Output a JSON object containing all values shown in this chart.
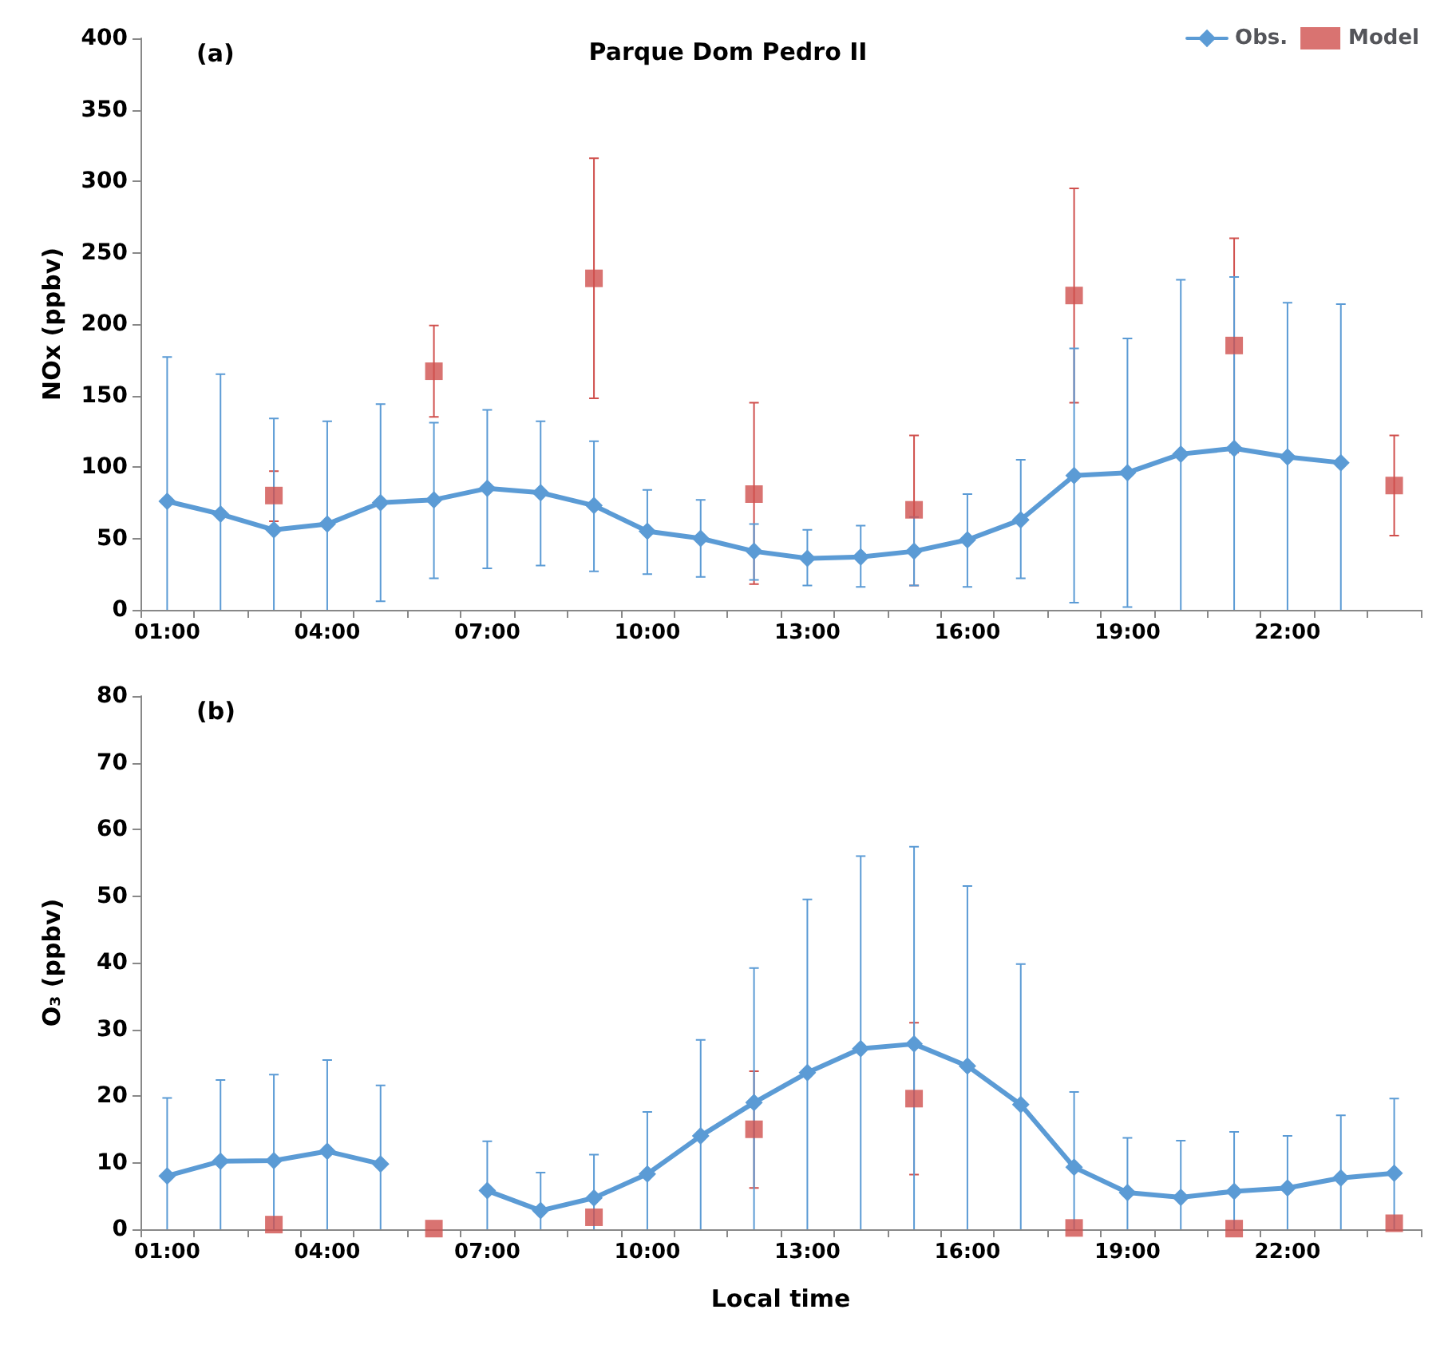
{
  "chart_data": [
    {
      "type": "line",
      "title": "Parque Dom Pedro II",
      "ylabel": "NOx (ppbv)",
      "annotations": [
        "(a)"
      ],
      "categories": [
        "01:00",
        null,
        null,
        "04:00",
        null,
        null,
        "07:00",
        null,
        null,
        "10:00",
        null,
        null,
        "13:00",
        null,
        null,
        "16:00",
        null,
        null,
        "19:00",
        null,
        null,
        "22:00",
        null,
        null
      ],
      "series": [
        {
          "name": "Obs.",
          "type": "line",
          "color": "#5b9bd5",
          "marker": "diamond",
          "line_style": "solid",
          "values": [
            76,
            67,
            56,
            60,
            75,
            77,
            85,
            82,
            73,
            55,
            50,
            41,
            36,
            37,
            41,
            49,
            63,
            94,
            96,
            109,
            113,
            107,
            103,
            null
          ],
          "errors": [
            [
              0,
              177
            ],
            [
              0,
              165
            ],
            [
              0,
              134
            ],
            [
              0,
              132
            ],
            [
              6,
              144
            ],
            [
              22,
              131
            ],
            [
              29,
              140
            ],
            [
              31,
              132
            ],
            [
              27,
              118
            ],
            [
              25,
              84
            ],
            [
              23,
              77
            ],
            [
              21,
              60
            ],
            [
              17,
              56
            ],
            [
              16,
              59
            ],
            [
              17,
              65
            ],
            [
              16,
              81
            ],
            [
              22,
              105
            ],
            [
              5,
              183
            ],
            [
              2,
              190
            ],
            [
              0,
              231
            ],
            [
              0,
              233
            ],
            [
              0,
              215
            ],
            [
              0,
              214
            ],
            null
          ]
        },
        {
          "name": "Model",
          "type": "scatter",
          "color": "#d0504d",
          "marker": "square",
          "values": [
            null,
            null,
            80,
            null,
            null,
            167,
            null,
            null,
            232,
            null,
            null,
            81,
            null,
            null,
            70,
            null,
            null,
            220,
            null,
            null,
            185,
            null,
            null,
            87
          ],
          "errors": [
            null,
            null,
            [
              62,
              97
            ],
            null,
            null,
            [
              135,
              199
            ],
            null,
            null,
            [
              148,
              316
            ],
            null,
            null,
            [
              18,
              145
            ],
            null,
            null,
            [
              17,
              122
            ],
            null,
            null,
            [
              145,
              295
            ],
            null,
            null,
            [
              110,
              260
            ],
            null,
            null,
            [
              52,
              122
            ]
          ]
        }
      ],
      "ylim": [
        0,
        400
      ],
      "yticks": [
        0,
        50,
        100,
        150,
        200,
        250,
        300,
        350,
        400
      ],
      "grid": false,
      "legend": "top right"
    },
    {
      "type": "line",
      "xlabel": "Local time",
      "ylabel": "O₃ (ppbv)",
      "annotations": [
        "(b)"
      ],
      "categories": [
        "01:00",
        null,
        null,
        "04:00",
        null,
        null,
        "07:00",
        null,
        null,
        "10:00",
        null,
        null,
        "13:00",
        null,
        null,
        "16:00",
        null,
        null,
        "19:00",
        null,
        null,
        "22:00",
        null,
        null
      ],
      "series": [
        {
          "type": "line",
          "color": "#5b9bd5",
          "marker": "diamond",
          "line_style": "solid",
          "values": [
            8,
            10.2,
            10.3,
            11.7,
            9.8,
            null,
            5.8,
            2.8,
            4.7,
            8.3,
            14,
            19,
            23.5,
            27.1,
            27.8,
            24.5,
            18.7,
            9.3,
            5.5,
            4.8,
            5.7,
            6.2,
            7.7,
            8.4
          ],
          "errors": [
            [
              0,
              19.7
            ],
            [
              0,
              22.4
            ],
            [
              0,
              23.2
            ],
            [
              0,
              25.4
            ],
            [
              0,
              21.6
            ],
            null,
            [
              0,
              13.2
            ],
            [
              0,
              8.5
            ],
            [
              0,
              11.2
            ],
            [
              0,
              17.6
            ],
            [
              0,
              28.4
            ],
            [
              0,
              39.2
            ],
            [
              0,
              49.5
            ],
            [
              0,
              56
            ],
            [
              0,
              57.4
            ],
            [
              0,
              51.5
            ],
            [
              0,
              39.8
            ],
            [
              0,
              20.6
            ],
            [
              0,
              13.7
            ],
            [
              0,
              13.3
            ],
            [
              0,
              14.6
            ],
            [
              0,
              14
            ],
            [
              0,
              17.1
            ],
            [
              0,
              19.6
            ]
          ]
        },
        {
          "type": "scatter",
          "color": "#d0504d",
          "marker": "square",
          "values": [
            null,
            null,
            0.7,
            null,
            null,
            0.1,
            null,
            null,
            1.8,
            null,
            null,
            15,
            null,
            null,
            19.6,
            null,
            null,
            0.2,
            null,
            null,
            0.1,
            null,
            null,
            0.9
          ],
          "errors": [
            null,
            null,
            null,
            null,
            null,
            null,
            null,
            null,
            null,
            null,
            null,
            [
              6.2,
              23.7
            ],
            null,
            null,
            [
              8.2,
              31
            ],
            null,
            null,
            null,
            null,
            null,
            null,
            null,
            null,
            null
          ]
        }
      ],
      "ylim": [
        0,
        80
      ],
      "yticks": [
        0,
        10,
        20,
        30,
        40,
        50,
        60,
        70,
        80
      ],
      "grid": false,
      "legend": false
    }
  ]
}
